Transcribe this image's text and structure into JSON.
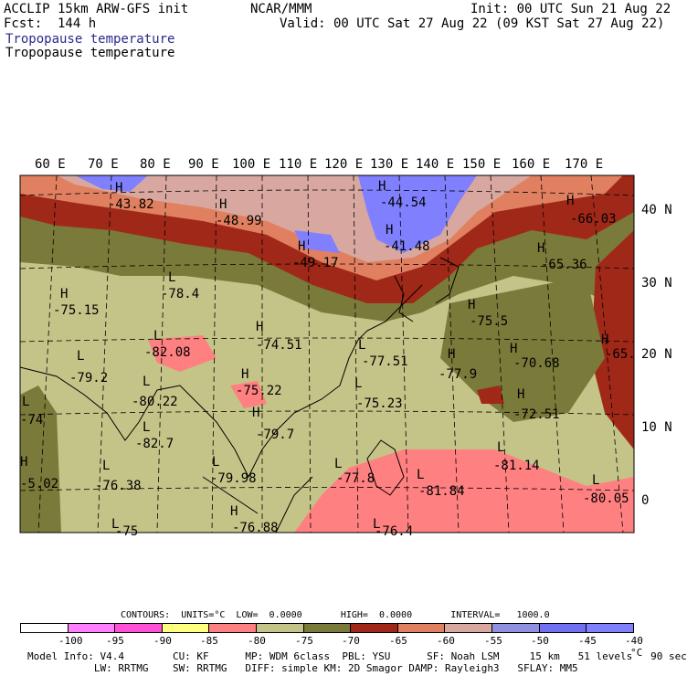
{
  "header": {
    "model": "ACCLIP 15km ARW-GFS init",
    "fcst": "Fcst:  144 h",
    "center": "NCAR/MMM",
    "init": "Init: 00 UTC Sun 21 Aug 22",
    "valid": "Valid: 00 UTC Sat 27 Aug 22 (09 KST Sat 27 Aug 22)",
    "title1": "Tropopause temperature",
    "title2": "Tropopause temperature"
  },
  "map": {
    "lon_labels": [
      "60 E",
      "70 E",
      "80 E",
      "90 E",
      "100 E",
      "110 E",
      "120 E",
      "130 E",
      "140 E",
      "150 E",
      "160 E",
      "170 E"
    ],
    "lat_labels": [
      "40 N",
      "30 N",
      "20 N",
      "10 N",
      "0"
    ],
    "extremes": [
      {
        "type": "H",
        "value": "-43.82"
      },
      {
        "type": "H",
        "value": "-48.99"
      },
      {
        "type": "H",
        "value": "-44.54"
      },
      {
        "type": "H",
        "value": "-41.48"
      },
      {
        "type": "H",
        "value": "-49.17"
      },
      {
        "type": "H",
        "value": "-66.03"
      },
      {
        "type": "H",
        "value": "-65.36"
      },
      {
        "type": "H",
        "value": "-65."
      },
      {
        "type": "H",
        "value": "-75.15"
      },
      {
        "type": "L",
        "value": "-78.4"
      },
      {
        "type": "H",
        "value": "-75.5"
      },
      {
        "type": "L",
        "value": "-82.08"
      },
      {
        "type": "H",
        "value": "-74.51"
      },
      {
        "type": "L",
        "value": "-77.51"
      },
      {
        "type": "H",
        "value": "-70.68"
      },
      {
        "type": "L",
        "value": "-79.2"
      },
      {
        "type": "H",
        "value": "-77.9"
      },
      {
        "type": "L",
        "value": "-80.22"
      },
      {
        "type": "H",
        "value": "-75.22"
      },
      {
        "type": "L",
        "value": "-75.23"
      },
      {
        "type": "H",
        "value": "-72.51"
      },
      {
        "type": "L",
        "value": "-74"
      },
      {
        "type": "H",
        "value": "-79.7"
      },
      {
        "type": "L",
        "value": "-82.7"
      },
      {
        "type": "L",
        "value": "-81.14"
      },
      {
        "type": "L",
        "value": "-76.38"
      },
      {
        "type": "L",
        "value": "-79.98"
      },
      {
        "type": "L",
        "value": "-77.8"
      },
      {
        "type": "L",
        "value": "-81.84"
      },
      {
        "type": "L",
        "value": "-80.05"
      },
      {
        "type": "H",
        "value": "-5.02"
      },
      {
        "type": "H",
        "value": "-76.88"
      },
      {
        "type": "L",
        "value": "-75"
      },
      {
        "type": "L",
        "value": "-76.4"
      }
    ]
  },
  "contours": {
    "text": "CONTOURS:  UNITS=°C  LOW=  0.0000       HIGH=  0.0000       INTERVAL=   1000.0"
  },
  "colorbar": {
    "colors": [
      "#ffffff",
      "#ff80ff",
      "#ff50d8",
      "#ffff80",
      "#ff8080",
      "#c4c488",
      "#7a7a3a",
      "#a02818",
      "#e08060",
      "#d8a8a0",
      "#9090e0",
      "#7070f0",
      "#8080ff"
    ],
    "labels": [
      "-100",
      "-95",
      "-90",
      "-85",
      "-80",
      "-75",
      "-70",
      "-65",
      "-60",
      "-55",
      "-50",
      "-45",
      "-40",
      "°C"
    ]
  },
  "footer": {
    "line1": "Model Info: V4.4        CU: KF      MP: WDM 6class  PBL: YSU      SF: Noah LSM     15 km   51 levels   90 sec",
    "line2": "           LW: RRTMG    SW: RRTMG   DIFF: simple KM: 2D Smagor DAMP: Rayleigh3   SFLAY: MM5"
  }
}
